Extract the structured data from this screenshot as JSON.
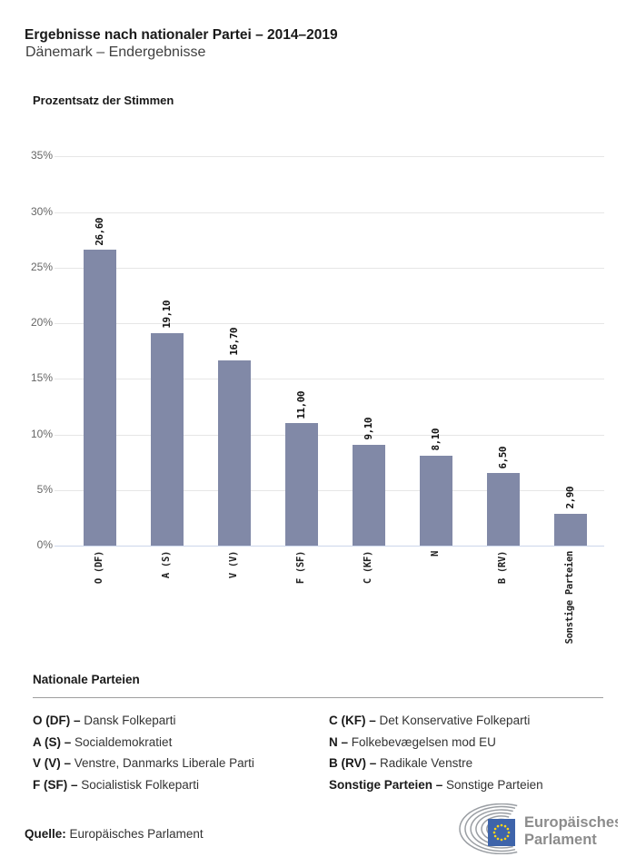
{
  "header": {
    "title": "Ergebnisse nach nationaler Partei – 2014–2019",
    "subtitle": "Dänemark – Endergebnisse"
  },
  "chart_data": {
    "type": "bar",
    "title": "Ergebnisse nach nationaler Partei – 2014–2019",
    "subtitle": "Dänemark – Endergebnisse",
    "ylabel": "Prozentsatz der Stimmen",
    "xlabel": "",
    "categories": [
      "O (DF)",
      "A (S)",
      "V (V)",
      "F (SF)",
      "C (KF)",
      "N",
      "B (RV)",
      "Sonstige Parteien"
    ],
    "values": [
      26.6,
      19.1,
      16.7,
      11.0,
      9.1,
      8.1,
      6.5,
      2.9
    ],
    "value_labels": [
      "26,60",
      "19,10",
      "16,70",
      "11,00",
      "9,10",
      "8,10",
      "6,50",
      "2,90"
    ],
    "ylim": [
      0,
      35
    ],
    "yticks": [
      {
        "value": 0,
        "label": "0%"
      },
      {
        "value": 5,
        "label": "5%"
      },
      {
        "value": 10,
        "label": "10%"
      },
      {
        "value": 15,
        "label": "15%"
      },
      {
        "value": 20,
        "label": "20%"
      },
      {
        "value": 25,
        "label": "25%"
      },
      {
        "value": 30,
        "label": "30%"
      },
      {
        "value": 35,
        "label": "35%"
      }
    ],
    "grid": true,
    "legend_position": "none",
    "bar_color": "#8189A7",
    "grid_color": "#E6E6E6",
    "axis_line_color": "#CCD6EB"
  },
  "legend": {
    "title": "Nationale Parteien",
    "items": [
      {
        "key": "O (DF)",
        "sep": "–",
        "name": "Dansk Folkeparti"
      },
      {
        "key": "A (S)",
        "sep": "–",
        "name": "Socialdemokratiet"
      },
      {
        "key": "V (V)",
        "sep": "–",
        "name": "Venstre, Danmarks Liberale Parti"
      },
      {
        "key": "F (SF)",
        "sep": "–",
        "name": "Socialistisk Folkeparti"
      },
      {
        "key": "C (KF)",
        "sep": "–",
        "name": "Det Konservative Folkeparti"
      },
      {
        "key": "N",
        "sep": "–",
        "name": "Folkebevægelsen mod EU"
      },
      {
        "key": "B (RV)",
        "sep": "–",
        "name": "Radikale Venstre"
      },
      {
        "key": "Sonstige Parteien",
        "sep": "–",
        "name": "Sonstige Parteien"
      }
    ]
  },
  "source": {
    "label": "Quelle:",
    "text": "Europäisches Parlament"
  },
  "logo": {
    "name": "europaeisches-parlament-logo",
    "line1": "Europäisches",
    "line2": "Parlament",
    "flag_blue": "#3E64AA",
    "star_yellow": "#FFD617",
    "arc_gray": "#9A9EA3",
    "text_gray": "#8C8C8C"
  }
}
